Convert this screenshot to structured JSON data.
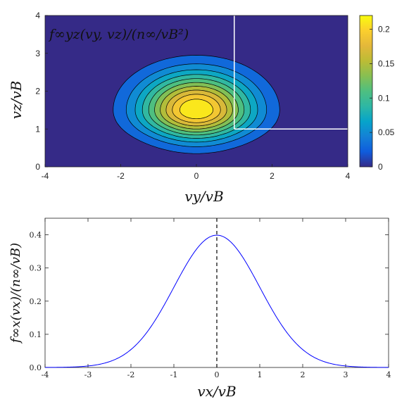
{
  "charts": [
    {
      "id": "top",
      "chart_data": {
        "type": "heatmap",
        "title": "f∞yz(vy, vz)/(n∞/vB²)",
        "xlabel": "vy/vB",
        "ylabel": "vz/vB",
        "xlim": [
          -4,
          4
        ],
        "ylim": [
          0,
          4
        ],
        "x_ticks": [
          "-4",
          "-2",
          "0",
          "2",
          "4"
        ],
        "y_ticks": [
          "0",
          "1",
          "2",
          "3",
          "4"
        ],
        "colorbar": {
          "range": [
            0,
            0.22
          ],
          "ticks": [
            "0",
            "0.05",
            "0.1",
            "0.15",
            "0.2"
          ]
        },
        "peak": {
          "x": 0,
          "y": 1.5,
          "value": 0.22
        },
        "contour_levels": [
          0.02,
          0.04,
          0.06,
          0.08,
          0.1,
          0.12,
          0.14,
          0.16,
          0.18,
          0.2
        ],
        "contour_outer_extent": {
          "x": [
            -2.2,
            2.2
          ],
          "y": [
            0.35,
            2.95
          ]
        },
        "overlay_lines": [
          {
            "x": [
              1,
              1
            ],
            "y": [
              1,
              4
            ],
            "color": "#ffffff"
          },
          {
            "x": [
              1,
              4
            ],
            "y": [
              1,
              1
            ],
            "color": "#ffffff"
          }
        ],
        "colors": {
          "background": "#352a87",
          "colormap": "parula"
        }
      }
    },
    {
      "id": "bottom",
      "chart_data": {
        "type": "line",
        "xlabel": "vx/vB",
        "ylabel": "f∞x(vx)/(n∞/vB)",
        "xlim": [
          -4,
          4
        ],
        "ylim": [
          0,
          0.45
        ],
        "x_ticks": [
          "-4",
          "-3",
          "-2",
          "-1",
          "0",
          "1",
          "2",
          "3",
          "4"
        ],
        "y_ticks": [
          "0.0",
          "0.1",
          "0.2",
          "0.3",
          "0.4"
        ],
        "series": [
          {
            "function": "gaussian",
            "mean": 0,
            "std": 1,
            "peak": 0.3989,
            "color": "#0000ff"
          }
        ],
        "vertical_marker": {
          "x": 0,
          "style": "dashed",
          "color": "#000000"
        }
      }
    }
  ]
}
